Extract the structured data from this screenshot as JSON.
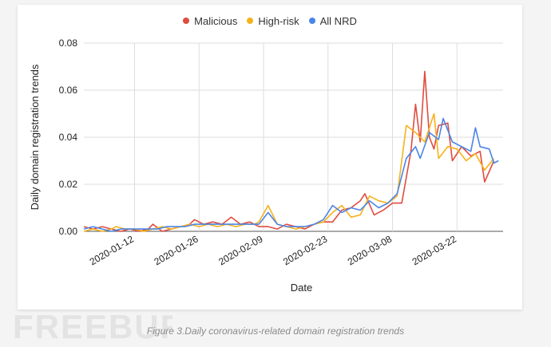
{
  "caption": "Figure 3.Daily coronavirus-related domain registration trends",
  "watermark": "FREEBUF",
  "colors": {
    "Malicious": "#e04c3f",
    "High-risk": "#f5b21b",
    "All NRD": "#4a86e8",
    "grid": "#dddddd",
    "background": "#ffffff"
  },
  "chart_data": {
    "type": "line",
    "title": "",
    "xlabel": "Date",
    "ylabel": "Daily domain registration trends",
    "ylim": [
      0,
      0.08
    ],
    "yticks": [
      "0.00",
      "0.02",
      "0.04",
      "0.06",
      "0.08"
    ],
    "xlim": [
      "2020-01-01",
      "2020-04-01"
    ],
    "xticks": [
      "2020-01-12",
      "2020-01-26",
      "2020-02-09",
      "2020-02-23",
      "2020-03-08",
      "2020-03-22"
    ],
    "grid": true,
    "legend_position": "top",
    "series": [
      {
        "name": "Malicious",
        "data": [
          [
            "2020-01-01",
            0.002
          ],
          [
            "2020-01-03",
            0.001
          ],
          [
            "2020-01-05",
            0.002
          ],
          [
            "2020-01-07",
            0.001
          ],
          [
            "2020-01-09",
            0.0
          ],
          [
            "2020-01-11",
            0.001
          ],
          [
            "2020-01-13",
            0.0
          ],
          [
            "2020-01-15",
            0.001
          ],
          [
            "2020-01-16",
            0.003
          ],
          [
            "2020-01-18",
            0.0
          ],
          [
            "2020-01-20",
            0.001
          ],
          [
            "2020-01-22",
            0.002
          ],
          [
            "2020-01-24",
            0.003
          ],
          [
            "2020-01-25",
            0.005
          ],
          [
            "2020-01-27",
            0.003
          ],
          [
            "2020-01-29",
            0.004
          ],
          [
            "2020-01-31",
            0.003
          ],
          [
            "2020-02-02",
            0.006
          ],
          [
            "2020-02-04",
            0.003
          ],
          [
            "2020-02-06",
            0.004
          ],
          [
            "2020-02-08",
            0.002
          ],
          [
            "2020-02-10",
            0.002
          ],
          [
            "2020-02-12",
            0.001
          ],
          [
            "2020-02-14",
            0.003
          ],
          [
            "2020-02-16",
            0.002
          ],
          [
            "2020-02-18",
            0.001
          ],
          [
            "2020-02-20",
            0.003
          ],
          [
            "2020-02-22",
            0.004
          ],
          [
            "2020-02-24",
            0.004
          ],
          [
            "2020-02-26",
            0.009
          ],
          [
            "2020-02-28",
            0.01
          ],
          [
            "2020-03-01",
            0.013
          ],
          [
            "2020-03-02",
            0.016
          ],
          [
            "2020-03-04",
            0.007
          ],
          [
            "2020-03-06",
            0.009
          ],
          [
            "2020-03-08",
            0.012
          ],
          [
            "2020-03-10",
            0.012
          ],
          [
            "2020-03-12",
            0.034
          ],
          [
            "2020-03-13",
            0.054
          ],
          [
            "2020-03-14",
            0.038
          ],
          [
            "2020-03-15",
            0.068
          ],
          [
            "2020-03-16",
            0.04
          ],
          [
            "2020-03-17",
            0.035
          ],
          [
            "2020-03-18",
            0.045
          ],
          [
            "2020-03-20",
            0.046
          ],
          [
            "2020-03-21",
            0.03
          ],
          [
            "2020-03-23",
            0.036
          ],
          [
            "2020-03-25",
            0.032
          ],
          [
            "2020-03-27",
            0.034
          ],
          [
            "2020-03-28",
            0.021
          ],
          [
            "2020-03-30",
            0.03
          ]
        ]
      },
      {
        "name": "High-risk",
        "data": [
          [
            "2020-01-01",
            0.0
          ],
          [
            "2020-01-03",
            0.001
          ],
          [
            "2020-01-05",
            0.0
          ],
          [
            "2020-01-07",
            0.001
          ],
          [
            "2020-01-08",
            0.002
          ],
          [
            "2020-01-10",
            0.001
          ],
          [
            "2020-01-12",
            0.001
          ],
          [
            "2020-01-14",
            0.0
          ],
          [
            "2020-01-16",
            0.001
          ],
          [
            "2020-01-18",
            0.002
          ],
          [
            "2020-01-20",
            0.001
          ],
          [
            "2020-01-22",
            0.002
          ],
          [
            "2020-01-24",
            0.003
          ],
          [
            "2020-01-26",
            0.002
          ],
          [
            "2020-01-28",
            0.003
          ],
          [
            "2020-01-30",
            0.002
          ],
          [
            "2020-02-01",
            0.003
          ],
          [
            "2020-02-03",
            0.002
          ],
          [
            "2020-02-05",
            0.003
          ],
          [
            "2020-02-07",
            0.003
          ],
          [
            "2020-02-08",
            0.004
          ],
          [
            "2020-02-10",
            0.011
          ],
          [
            "2020-02-12",
            0.003
          ],
          [
            "2020-02-14",
            0.002
          ],
          [
            "2020-02-16",
            0.001
          ],
          [
            "2020-02-18",
            0.002
          ],
          [
            "2020-02-20",
            0.003
          ],
          [
            "2020-02-22",
            0.004
          ],
          [
            "2020-02-24",
            0.008
          ],
          [
            "2020-02-26",
            0.011
          ],
          [
            "2020-02-28",
            0.006
          ],
          [
            "2020-03-01",
            0.007
          ],
          [
            "2020-03-03",
            0.015
          ],
          [
            "2020-03-05",
            0.013
          ],
          [
            "2020-03-07",
            0.012
          ],
          [
            "2020-03-09",
            0.015
          ],
          [
            "2020-03-11",
            0.045
          ],
          [
            "2020-03-13",
            0.042
          ],
          [
            "2020-03-15",
            0.038
          ],
          [
            "2020-03-17",
            0.05
          ],
          [
            "2020-03-18",
            0.031
          ],
          [
            "2020-03-20",
            0.036
          ],
          [
            "2020-03-22",
            0.035
          ],
          [
            "2020-03-24",
            0.03
          ],
          [
            "2020-03-26",
            0.033
          ],
          [
            "2020-03-28",
            0.026
          ],
          [
            "2020-03-30",
            0.031
          ]
        ]
      },
      {
        "name": "All NRD",
        "data": [
          [
            "2020-01-01",
            0.001
          ],
          [
            "2020-01-03",
            0.002
          ],
          [
            "2020-01-05",
            0.001
          ],
          [
            "2020-01-07",
            0.0
          ],
          [
            "2020-01-09",
            0.001
          ],
          [
            "2020-01-11",
            0.001
          ],
          [
            "2020-01-13",
            0.001
          ],
          [
            "2020-01-15",
            0.001
          ],
          [
            "2020-01-17",
            0.001
          ],
          [
            "2020-01-19",
            0.002
          ],
          [
            "2020-01-21",
            0.002
          ],
          [
            "2020-01-23",
            0.002
          ],
          [
            "2020-01-25",
            0.003
          ],
          [
            "2020-01-27",
            0.003
          ],
          [
            "2020-01-29",
            0.003
          ],
          [
            "2020-01-31",
            0.003
          ],
          [
            "2020-02-02",
            0.003
          ],
          [
            "2020-02-04",
            0.003
          ],
          [
            "2020-02-06",
            0.003
          ],
          [
            "2020-02-08",
            0.003
          ],
          [
            "2020-02-10",
            0.008
          ],
          [
            "2020-02-12",
            0.003
          ],
          [
            "2020-02-14",
            0.002
          ],
          [
            "2020-02-16",
            0.002
          ],
          [
            "2020-02-18",
            0.002
          ],
          [
            "2020-02-20",
            0.003
          ],
          [
            "2020-02-22",
            0.005
          ],
          [
            "2020-02-24",
            0.011
          ],
          [
            "2020-02-26",
            0.008
          ],
          [
            "2020-02-28",
            0.01
          ],
          [
            "2020-03-01",
            0.009
          ],
          [
            "2020-03-03",
            0.013
          ],
          [
            "2020-03-05",
            0.01
          ],
          [
            "2020-03-07",
            0.012
          ],
          [
            "2020-03-09",
            0.016
          ],
          [
            "2020-03-11",
            0.031
          ],
          [
            "2020-03-13",
            0.036
          ],
          [
            "2020-03-14",
            0.031
          ],
          [
            "2020-03-16",
            0.042
          ],
          [
            "2020-03-18",
            0.039
          ],
          [
            "2020-03-19",
            0.048
          ],
          [
            "2020-03-21",
            0.038
          ],
          [
            "2020-03-23",
            0.036
          ],
          [
            "2020-03-25",
            0.034
          ],
          [
            "2020-03-26",
            0.044
          ],
          [
            "2020-03-27",
            0.036
          ],
          [
            "2020-03-29",
            0.035
          ],
          [
            "2020-03-30",
            0.029
          ],
          [
            "2020-03-31",
            0.03
          ]
        ]
      }
    ]
  }
}
